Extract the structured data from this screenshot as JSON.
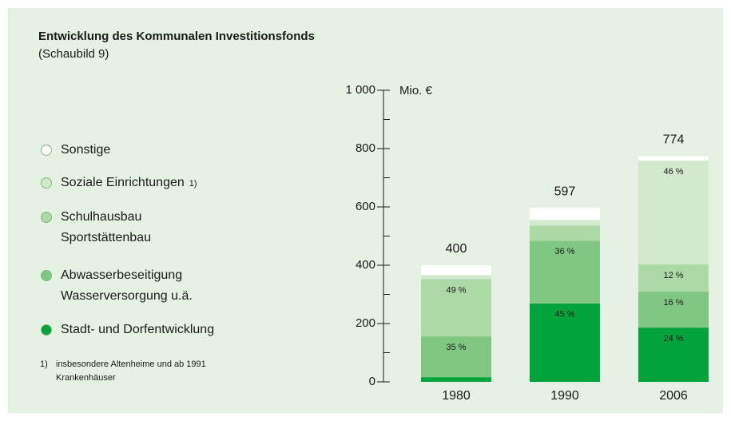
{
  "chart_data": {
    "type": "stacked_bar",
    "title": "Entwicklung des Kommunalen Investitionsfonds",
    "subtitle": "(Schaubild 9)",
    "y_unit": "Mio. €",
    "categories": [
      "1980",
      "1990",
      "2006"
    ],
    "totals": [
      400,
      597,
      774
    ],
    "series": [
      {
        "name": "Stadt- und Dorfentwicklung",
        "color": "#00a33c",
        "values": [
          16,
          269,
          186
        ],
        "share_labels": [
          null,
          "45 %",
          "24 %"
        ]
      },
      {
        "name": "Abwasserbeseitigung\nWasserversorgung u.ä.",
        "color": "#7fc783",
        "values": [
          140,
          215,
          124
        ],
        "share_labels": [
          "35 %",
          "36 %",
          "16 %"
        ]
      },
      {
        "name": "Schulhausbau\nSportstättenbau",
        "color": "#acd9a6",
        "values": [
          196,
          52,
          93
        ],
        "share_labels": [
          "49 %",
          null,
          "12 %"
        ]
      },
      {
        "name": "Soziale Einrichtungen",
        "note_ref": "1)",
        "color": "#d2e9cc",
        "values": [
          14,
          19,
          356
        ],
        "share_labels": [
          null,
          null,
          "46 %"
        ]
      },
      {
        "name": "Sonstige",
        "color": "#ffffff",
        "values": [
          34,
          42,
          15
        ],
        "share_labels": [
          null,
          null,
          null
        ]
      }
    ],
    "ylim": [
      0,
      1000
    ],
    "yticks": [
      0,
      200,
      400,
      600,
      800,
      {
        "value": 1000,
        "label": "1 000"
      }
    ],
    "minor_yticks": [
      100,
      300,
      500,
      700,
      900
    ],
    "footnote": {
      "marker": "1)",
      "text": "insbesondere Altenheime und ab 1991\nKrankenhäuser"
    }
  }
}
